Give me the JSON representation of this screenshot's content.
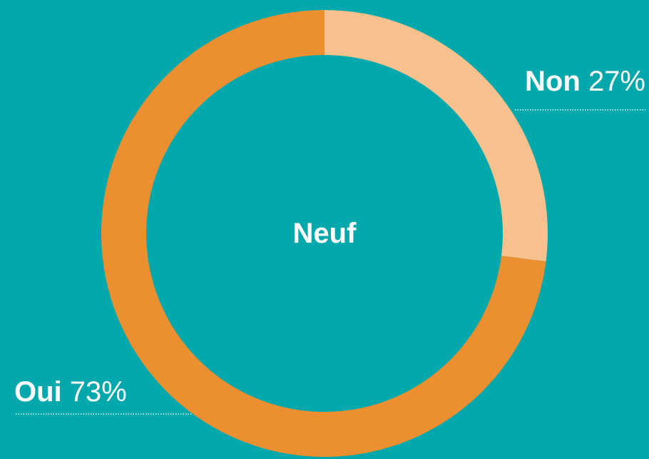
{
  "chart_data": {
    "type": "donut",
    "center_label": "Neuf",
    "categories": [
      "Non",
      "Oui"
    ],
    "values": [
      27,
      73
    ],
    "value_labels": [
      "27%",
      "73%"
    ],
    "colors": [
      "#f8c18e",
      "#ec8f30"
    ],
    "background": "#02a8ab"
  }
}
